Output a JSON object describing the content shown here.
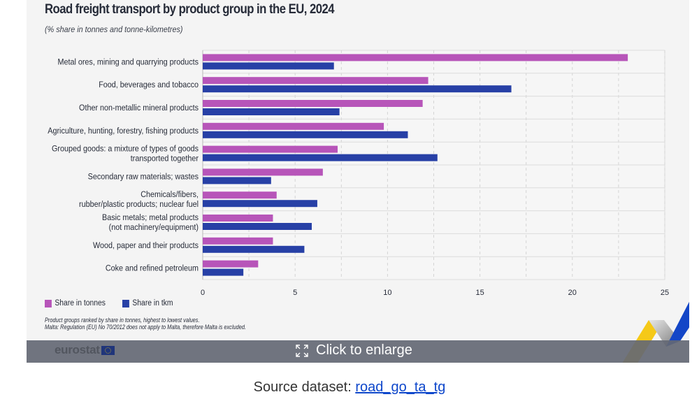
{
  "chart_data": {
    "type": "bar",
    "orientation": "horizontal",
    "title": "Road freight transport by product group in the EU, 2024",
    "subtitle": "(% share in tonnes and tonne-kilometres)",
    "xlabel": "",
    "ylabel": "",
    "xlim": [
      0,
      25
    ],
    "xticks": [
      0,
      5,
      10,
      15,
      20,
      25
    ],
    "grid": true,
    "legend_position": "bottom-left",
    "categories": [
      [
        "Metal ores, mining and quarrying products"
      ],
      [
        "Food, beverages and tobacco"
      ],
      [
        "Other non-metallic mineral products"
      ],
      [
        "Agriculture, hunting, forestry, fishing products"
      ],
      [
        "Grouped goods: a mixture of types of goods",
        "transported together"
      ],
      [
        "Secondary raw materials; wastes"
      ],
      [
        "Chemicals/fibers,",
        "rubber/plastic products; nuclear fuel"
      ],
      [
        "Basic metals; metal products",
        "(not machinery/equipment)"
      ],
      [
        "Wood, paper and their products"
      ],
      [
        "Coke and refined petroleum"
      ]
    ],
    "series": [
      {
        "name": "Share in tonnes",
        "color": "#b755b9",
        "values": [
          23.0,
          12.2,
          11.9,
          9.8,
          7.3,
          6.5,
          4.0,
          3.8,
          3.8,
          3.0
        ]
      },
      {
        "name": "Share in tkm",
        "color": "#2740a6",
        "values": [
          7.1,
          16.7,
          7.4,
          11.1,
          12.7,
          3.7,
          6.2,
          5.9,
          5.5,
          2.2
        ]
      }
    ],
    "notes": [
      "Product groups ranked by share in tonnes, highest to lowest values.",
      "Malta: Regulation (EU) No 70/2012 does not apply to Malta, therefore Malta is excluded."
    ]
  },
  "overlay": {
    "brand": "eurostat",
    "enlarge_label": "Click to enlarge",
    "icon": "expand-icon"
  },
  "source": {
    "label": "Source dataset:",
    "link_text": "road_go_ta_tg"
  }
}
